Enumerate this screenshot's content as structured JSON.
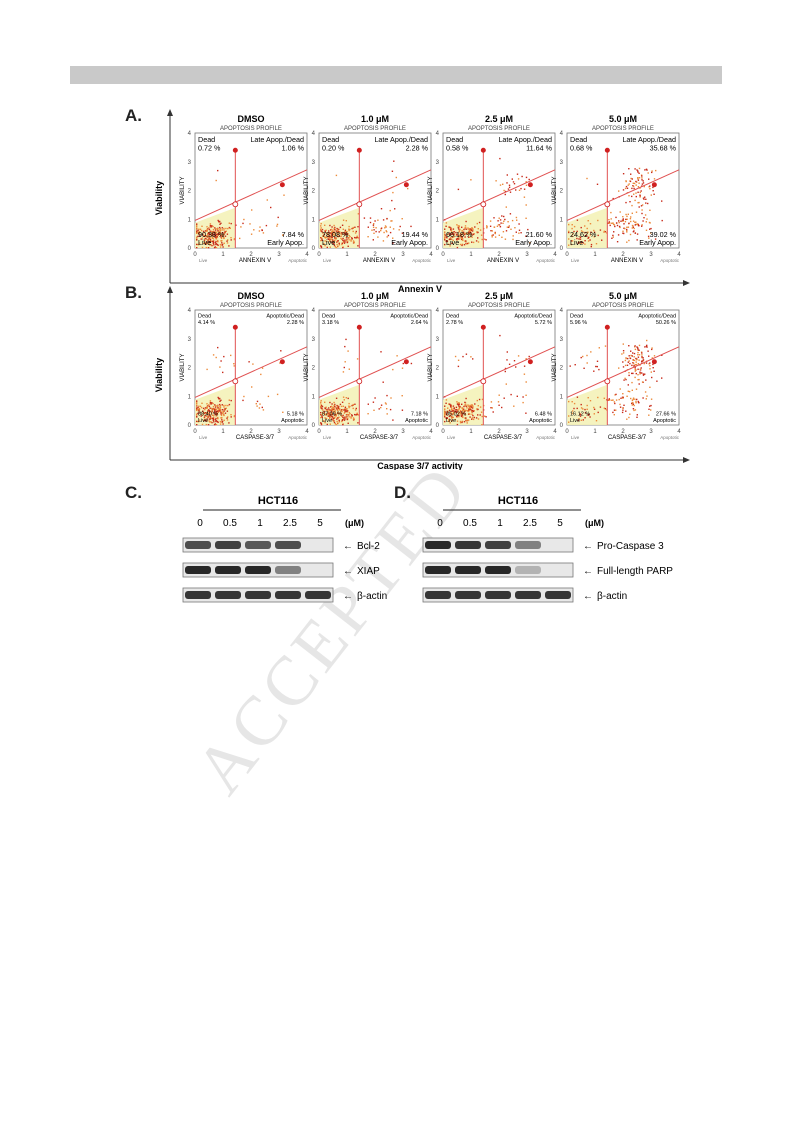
{
  "watermark": "ACCEPTED",
  "panelA": {
    "letter": "A.",
    "y_axis_label": "Viability",
    "x_axis_label": "Annexin V",
    "plots": [
      {
        "title": "DMSO",
        "profile": "APOPTOSIS PROFILE",
        "tl_label": "Dead",
        "tl_val": "0.72 %",
        "tr_label": "Late Apop./Dead",
        "tr_val": "1.06 %",
        "bl_val": "90.38 %",
        "bl_label": "Live",
        "br_val": "7.84 %",
        "br_label": "Early Apop.",
        "xlab": "ANNEXIN V",
        "ylab": "VIABILITY",
        "xl": "Live",
        "xr": "Apoptotic"
      },
      {
        "title": "1.0 μM",
        "profile": "APOPTOSIS PROFILE",
        "tl_label": "Dead",
        "tl_val": "0.20 %",
        "tr_label": "Late Apop./Dead",
        "tr_val": "2.28 %",
        "bl_val": "78.08 %",
        "bl_label": "Live",
        "br_val": "19.44 %",
        "br_label": "Early Apop.",
        "xlab": "ANNEXIN V",
        "ylab": "VIABILITY",
        "xl": "Live",
        "xr": "Apoptotic"
      },
      {
        "title": "2.5 μM",
        "profile": "APOPTOSIS PROFILE",
        "tl_label": "Dead",
        "tl_val": "0.58 %",
        "tr_label": "Late Apop./Dead",
        "tr_val": "11.64 %",
        "bl_val": "66.18 %",
        "bl_label": "Live",
        "br_val": "21.60 %",
        "br_label": "Early Apop.",
        "xlab": "ANNEXIN V",
        "ylab": "VIABILITY",
        "xl": "Live",
        "xr": "Apoptotic"
      },
      {
        "title": "5.0 μM",
        "profile": "APOPTOSIS PROFILE",
        "tl_label": "Dead",
        "tl_val": "0.68 %",
        "tr_label": "Late Apop./Dead",
        "tr_val": "35.68 %",
        "bl_val": "24.62 %",
        "bl_label": "Live",
        "br_val": "39.02 %",
        "br_label": "Early Apop.",
        "xlab": "ANNEXIN V",
        "ylab": "VIABILITY",
        "xl": "Live",
        "xr": "Apoptotic"
      }
    ]
  },
  "panelB": {
    "letter": "B.",
    "y_axis_label": "Viability",
    "x_axis_label": "Caspase 3/7 activity",
    "plots": [
      {
        "title": "DMSO",
        "profile": "APOPTOSIS PROFILE",
        "tl_label": "Dead",
        "tl_val": "4.14 %",
        "tr_label": "Apoptotic/Dead",
        "tr_val": "2.28 %",
        "bl_val": "88.40 %",
        "bl_label": "Live",
        "br_val": "5.18 %",
        "br_label": "Apoptotic",
        "xlab": "CASPASE-3/7",
        "ylab": "VIABILITY",
        "xl": "Live",
        "xr": "Apoptotic"
      },
      {
        "title": "1.0 μM",
        "profile": "APOPTOSIS PROFILE",
        "tl_label": "Dead",
        "tl_val": "3.18 %",
        "tr_label": "Apoptotic/Dead",
        "tr_val": "2.64 %",
        "bl_val": "87.06 %",
        "bl_label": "Live",
        "br_val": "7.18 %",
        "br_label": "Apoptotic",
        "xlab": "CASPASE-3/7",
        "ylab": "VIABILITY",
        "xl": "Live",
        "xr": "Apoptotic"
      },
      {
        "title": "2.5 μM",
        "profile": "APOPTOSIS PROFILE",
        "tl_label": "Dead",
        "tl_val": "2.78 %",
        "tr_label": "Apoptotic/Dead",
        "tr_val": "5.72 %",
        "bl_val": "85.02 %",
        "bl_label": "Live",
        "br_val": "6.48 %",
        "br_label": "Apoptotic",
        "xlab": "CASPASE-3/7",
        "ylab": "VIABILITY",
        "xl": "Live",
        "xr": "Apoptotic"
      },
      {
        "title": "5.0 μM",
        "profile": "APOPTOSIS PROFILE",
        "tl_label": "Dead",
        "tl_val": "5.96 %",
        "tr_label": "Apoptotic/Dead",
        "tr_val": "50.26 %",
        "bl_val": "16.12 %",
        "bl_label": "Live",
        "br_val": "27.66 %",
        "br_label": "Apoptotic",
        "xlab": "CASPASE-3/7",
        "ylab": "VIABILITY",
        "xl": "Live",
        "xr": "Apoptotic"
      }
    ]
  },
  "panelC": {
    "letter": "C.",
    "cell_line": "HCT116",
    "doses": [
      "0",
      "0.5",
      "1",
      "2.5",
      "5"
    ],
    "unit": "(μM)",
    "bands": [
      {
        "label": "Bcl-2",
        "intensities": [
          0.85,
          0.9,
          0.8,
          0.85,
          0.0
        ]
      },
      {
        "label": "XIAP",
        "intensities": [
          1.0,
          1.0,
          1.0,
          0.6,
          0.0
        ]
      },
      {
        "label": "β-actin",
        "intensities": [
          0.95,
          0.95,
          0.95,
          0.95,
          0.95
        ]
      }
    ]
  },
  "panelD": {
    "letter": "D.",
    "cell_line": "HCT116",
    "doses": [
      "0",
      "0.5",
      "1",
      "2.5",
      "5"
    ],
    "unit": "(μM)",
    "bands": [
      {
        "label": "Pro-Caspase 3",
        "intensities": [
          1.0,
          0.95,
          0.9,
          0.6,
          0.0
        ]
      },
      {
        "label": "Full-length PARP",
        "intensities": [
          1.0,
          1.0,
          1.0,
          0.3,
          0.0
        ]
      },
      {
        "label": "β-actin",
        "intensities": [
          0.95,
          0.95,
          0.95,
          0.95,
          0.95
        ]
      }
    ]
  }
}
